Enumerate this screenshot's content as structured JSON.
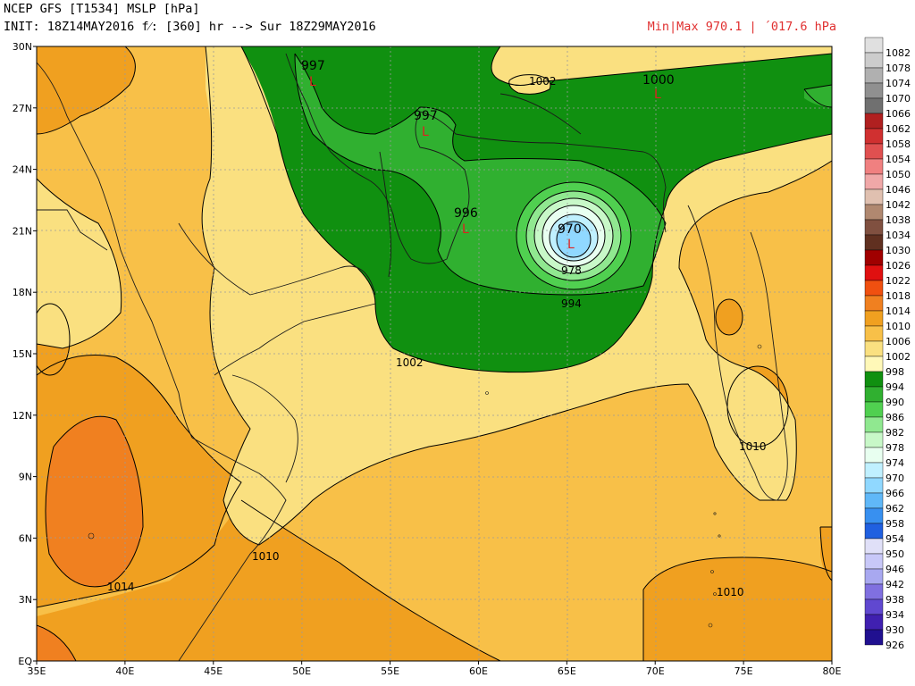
{
  "header": {
    "title_line1": "NCEP GFS [T1534] MSLP [hPa]",
    "title_line2": "INIT: 18Z14MAY2016 f⁄: [360] hr --> Sur 18Z29MAY2016",
    "minmax": "Min|Max 970.1 | ´017.6 hPa"
  },
  "axes": {
    "x_ticks": [
      "35E",
      "40E",
      "45E",
      "50E",
      "55E",
      "60E",
      "65E",
      "70E",
      "75E",
      "80E"
    ],
    "y_ticks": [
      "30N",
      "27N",
      "24N",
      "21N",
      "18N",
      "15N",
      "12N",
      "9N",
      "6N",
      "3N",
      "EQ"
    ]
  },
  "lows": [
    {
      "value": "997",
      "mark": "L"
    },
    {
      "value": "997",
      "mark": "L"
    },
    {
      "value": "1000",
      "mark": "L"
    },
    {
      "value": "996",
      "mark": "L"
    },
    {
      "value": "970",
      "mark": "L"
    }
  ],
  "contour_labels": [
    "1002",
    "978",
    "994",
    "1002",
    "1010",
    "1010",
    "1014",
    "1010"
  ],
  "colorbar": {
    "levels": [
      {
        "label": "1082",
        "color": "#e0e0e0"
      },
      {
        "label": "1078",
        "color": "#cccccc"
      },
      {
        "label": "1074",
        "color": "#b0b0b0"
      },
      {
        "label": "1070",
        "color": "#909090"
      },
      {
        "label": "1066",
        "color": "#707070"
      },
      {
        "label": "1062",
        "color": "#b02020"
      },
      {
        "label": "1058",
        "color": "#d03030"
      },
      {
        "label": "1054",
        "color": "#e05050"
      },
      {
        "label": "1050",
        "color": "#f08080"
      },
      {
        "label": "1046",
        "color": "#f0a8a8"
      },
      {
        "label": "1042",
        "color": "#e0c0b0"
      },
      {
        "label": "1038",
        "color": "#b08870"
      },
      {
        "label": "1034",
        "color": "#805040"
      },
      {
        "label": "1030",
        "color": "#603020"
      },
      {
        "label": "1026",
        "color": "#a00000"
      },
      {
        "label": "1022",
        "color": "#e01010"
      },
      {
        "label": "1018",
        "color": "#f05010"
      },
      {
        "label": "1014",
        "color": "#f08020"
      },
      {
        "label": "1010",
        "color": "#f0a020"
      },
      {
        "label": "1006",
        "color": "#f8c048"
      },
      {
        "label": "1002",
        "color": "#fae080"
      },
      {
        "label": "998",
        "color": "#fff8b8"
      },
      {
        "label": "994",
        "color": "#109010"
      },
      {
        "label": "990",
        "color": "#30b030"
      },
      {
        "label": "986",
        "color": "#50d050"
      },
      {
        "label": "982",
        "color": "#90e890"
      },
      {
        "label": "978",
        "color": "#c8f8c8"
      },
      {
        "label": "974",
        "color": "#e8fff0"
      },
      {
        "label": "970",
        "color": "#c0f0ff"
      },
      {
        "label": "966",
        "color": "#90d8ff"
      },
      {
        "label": "962",
        "color": "#60b8f8"
      },
      {
        "label": "958",
        "color": "#3890f0"
      },
      {
        "label": "954",
        "color": "#2060e0"
      },
      {
        "label": "950",
        "color": "#e0e0f8"
      },
      {
        "label": "946",
        "color": "#c8c8f8"
      },
      {
        "label": "942",
        "color": "#a8a8f0"
      },
      {
        "label": "938",
        "color": "#8070e0"
      },
      {
        "label": "934",
        "color": "#6048d0"
      },
      {
        "label": "930",
        "color": "#4020b0"
      },
      {
        "label": "926",
        "color": "#201090"
      }
    ]
  }
}
